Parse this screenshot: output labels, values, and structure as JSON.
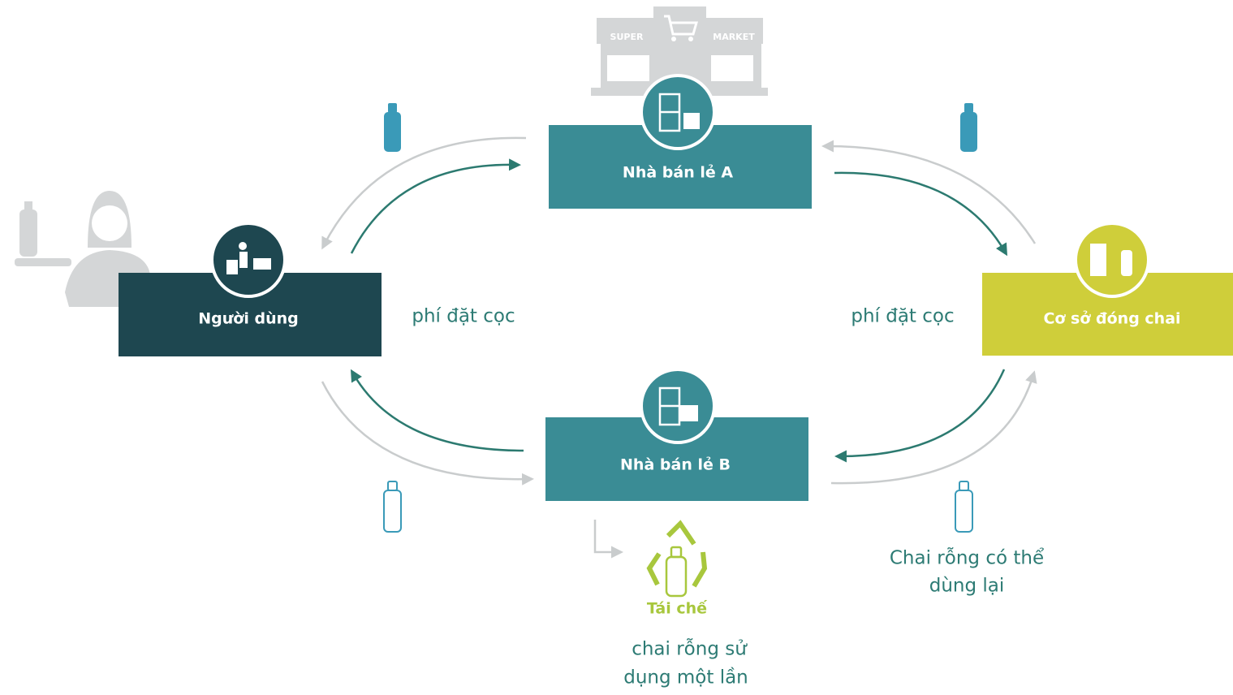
{
  "store_sign": {
    "left": "SUPER",
    "right": "MARKET"
  },
  "nodes": [
    {
      "label": "Nhà bán lẻ A"
    },
    {
      "label": "Người dùng"
    },
    {
      "label": "Cơ sở đóng chai"
    },
    {
      "label": "Nhà bán lẻ B"
    }
  ],
  "deposit_labels": [
    "phí đặt cọc",
    "phí đặt cọc"
  ],
  "reusable_caption": [
    "Chai rỗng có thể",
    "dùng lại"
  ],
  "recycle_label": "Tái chế",
  "single_use_caption": [
    "chai rỗng sử",
    "dụng một lần"
  ]
}
